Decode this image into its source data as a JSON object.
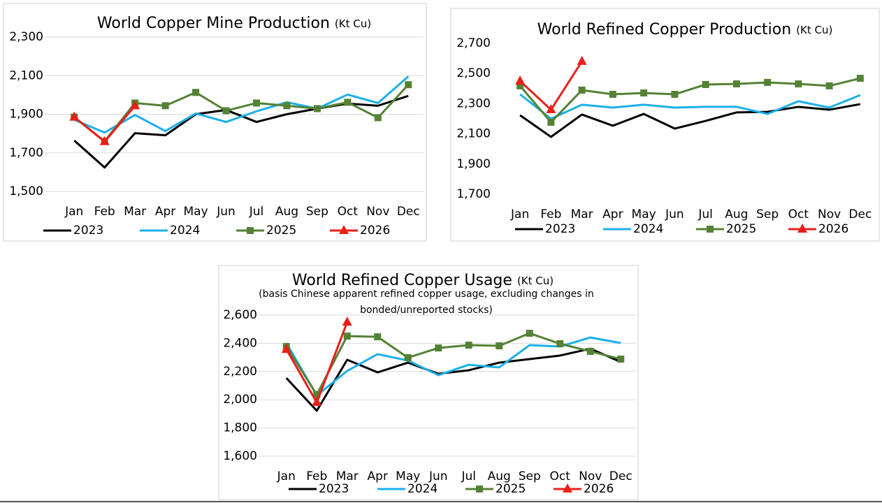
{
  "chart_data": [
    {
      "type": "line",
      "title": "World Copper Mine Production",
      "title_unit": "(Kt Cu)",
      "categories": [
        "Jan",
        "Feb",
        "Mar",
        "Apr",
        "May",
        "Jun",
        "Jul",
        "Aug",
        "Sep",
        "Oct",
        "Nov",
        "Dec"
      ],
      "ylim": [
        1500,
        2300
      ],
      "yticks": [
        {
          "value": 1500,
          "label": "1,500"
        },
        {
          "value": 1700,
          "label": "1,700"
        },
        {
          "value": 1900,
          "label": "1,900"
        },
        {
          "value": 2100,
          "label": "2,100"
        },
        {
          "value": 2300,
          "label": "2,300"
        }
      ],
      "grid": true,
      "legend": "bottom",
      "series": [
        {
          "name": "2023",
          "color": "#000000",
          "values": [
            1764,
            1624,
            1802,
            1791,
            1900,
            1922,
            1860,
            1900,
            1929,
            1955,
            1944,
            1995
          ]
        },
        {
          "name": "2024",
          "color": "#1ab0e8",
          "values": [
            1871,
            1805,
            1896,
            1813,
            1904,
            1860,
            1915,
            1962,
            1929,
            2002,
            1958,
            2096
          ]
        },
        {
          "name": "2025",
          "color": "#548235",
          "marker": "square",
          "values": [
            1885,
            1760,
            1958,
            1944,
            2013,
            1918,
            1958,
            1944,
            1929,
            1962,
            1882,
            2053
          ]
        },
        {
          "name": "2026",
          "color": "#e8201a",
          "marker": "triangle",
          "values": [
            1885,
            1758,
            1944,
            null,
            null,
            null,
            null,
            null,
            null,
            null,
            null,
            null
          ]
        }
      ]
    },
    {
      "type": "line",
      "title": "World Refined Copper Production",
      "title_unit": "(Kt Cu)",
      "categories": [
        "Jan",
        "Feb",
        "Mar",
        "Apr",
        "May",
        "Jun",
        "Jul",
        "Aug",
        "Sep",
        "Oct",
        "Nov",
        "Dec"
      ],
      "ylim": [
        1700,
        2700
      ],
      "yticks": [
        {
          "value": 1700,
          "label": "1,700"
        },
        {
          "value": 1900,
          "label": "1,900"
        },
        {
          "value": 2100,
          "label": "2,100"
        },
        {
          "value": 2300,
          "label": "2,300"
        },
        {
          "value": 2500,
          "label": "2,500"
        },
        {
          "value": 2700,
          "label": "2,700"
        }
      ],
      "grid": false,
      "legend": "bottom",
      "series": [
        {
          "name": "2023",
          "color": "#000000",
          "values": [
            2223,
            2080,
            2228,
            2154,
            2232,
            2135,
            2186,
            2242,
            2246,
            2279,
            2260,
            2297
          ]
        },
        {
          "name": "2024",
          "color": "#1ab0e8",
          "values": [
            2362,
            2200,
            2293,
            2274,
            2293,
            2274,
            2279,
            2279,
            2232,
            2316,
            2274,
            2357
          ]
        },
        {
          "name": "2025",
          "color": "#548235",
          "marker": "square",
          "values": [
            2418,
            2177,
            2390,
            2362,
            2371,
            2362,
            2427,
            2431,
            2441,
            2431,
            2418,
            2468
          ]
        },
        {
          "name": "2026",
          "color": "#e8201a",
          "marker": "triangle",
          "values": [
            2450,
            2260,
            2580,
            null,
            null,
            null,
            null,
            null,
            null,
            null,
            null,
            null
          ]
        }
      ]
    },
    {
      "type": "line",
      "title": "World Refined Copper Usage",
      "title_unit": "(Kt Cu)",
      "subtitle": [
        "(basis Chinese apparent refined copper usage, excluding changes in",
        "bonded/unreported stocks)"
      ],
      "categories": [
        "Jan",
        "Feb",
        "Mar",
        "Apr",
        "May",
        "Jun",
        "Jul",
        "Aug",
        "Sep",
        "Oct",
        "Nov",
        "Dec"
      ],
      "ylim": [
        1600,
        2600
      ],
      "yticks": [
        {
          "value": 1600,
          "label": "1,600"
        },
        {
          "value": 1800,
          "label": "1,800"
        },
        {
          "value": 2000,
          "label": "2,000"
        },
        {
          "value": 2200,
          "label": "2,200"
        },
        {
          "value": 2400,
          "label": "2,400"
        },
        {
          "value": 2600,
          "label": "2,600"
        }
      ],
      "grid": true,
      "legend": "bottom",
      "series": [
        {
          "name": "2023",
          "color": "#000000",
          "values": [
            2154,
            1922,
            2283,
            2194,
            2263,
            2184,
            2209,
            2263,
            2288,
            2313,
            2362,
            2268
          ]
        },
        {
          "name": "2024",
          "color": "#1ab0e8",
          "values": [
            2402,
            2031,
            2204,
            2323,
            2278,
            2174,
            2248,
            2229,
            2387,
            2377,
            2441,
            2402
          ]
        },
        {
          "name": "2025",
          "color": "#548235",
          "marker": "square",
          "values": [
            2377,
            2036,
            2451,
            2446,
            2298,
            2367,
            2387,
            2382,
            2471,
            2397,
            2343,
            2288
          ]
        },
        {
          "name": "2026",
          "color": "#e8201a",
          "marker": "triangle",
          "values": [
            2357,
            1981,
            2550,
            null,
            null,
            null,
            null,
            null,
            null,
            null,
            null,
            null
          ]
        }
      ]
    }
  ]
}
